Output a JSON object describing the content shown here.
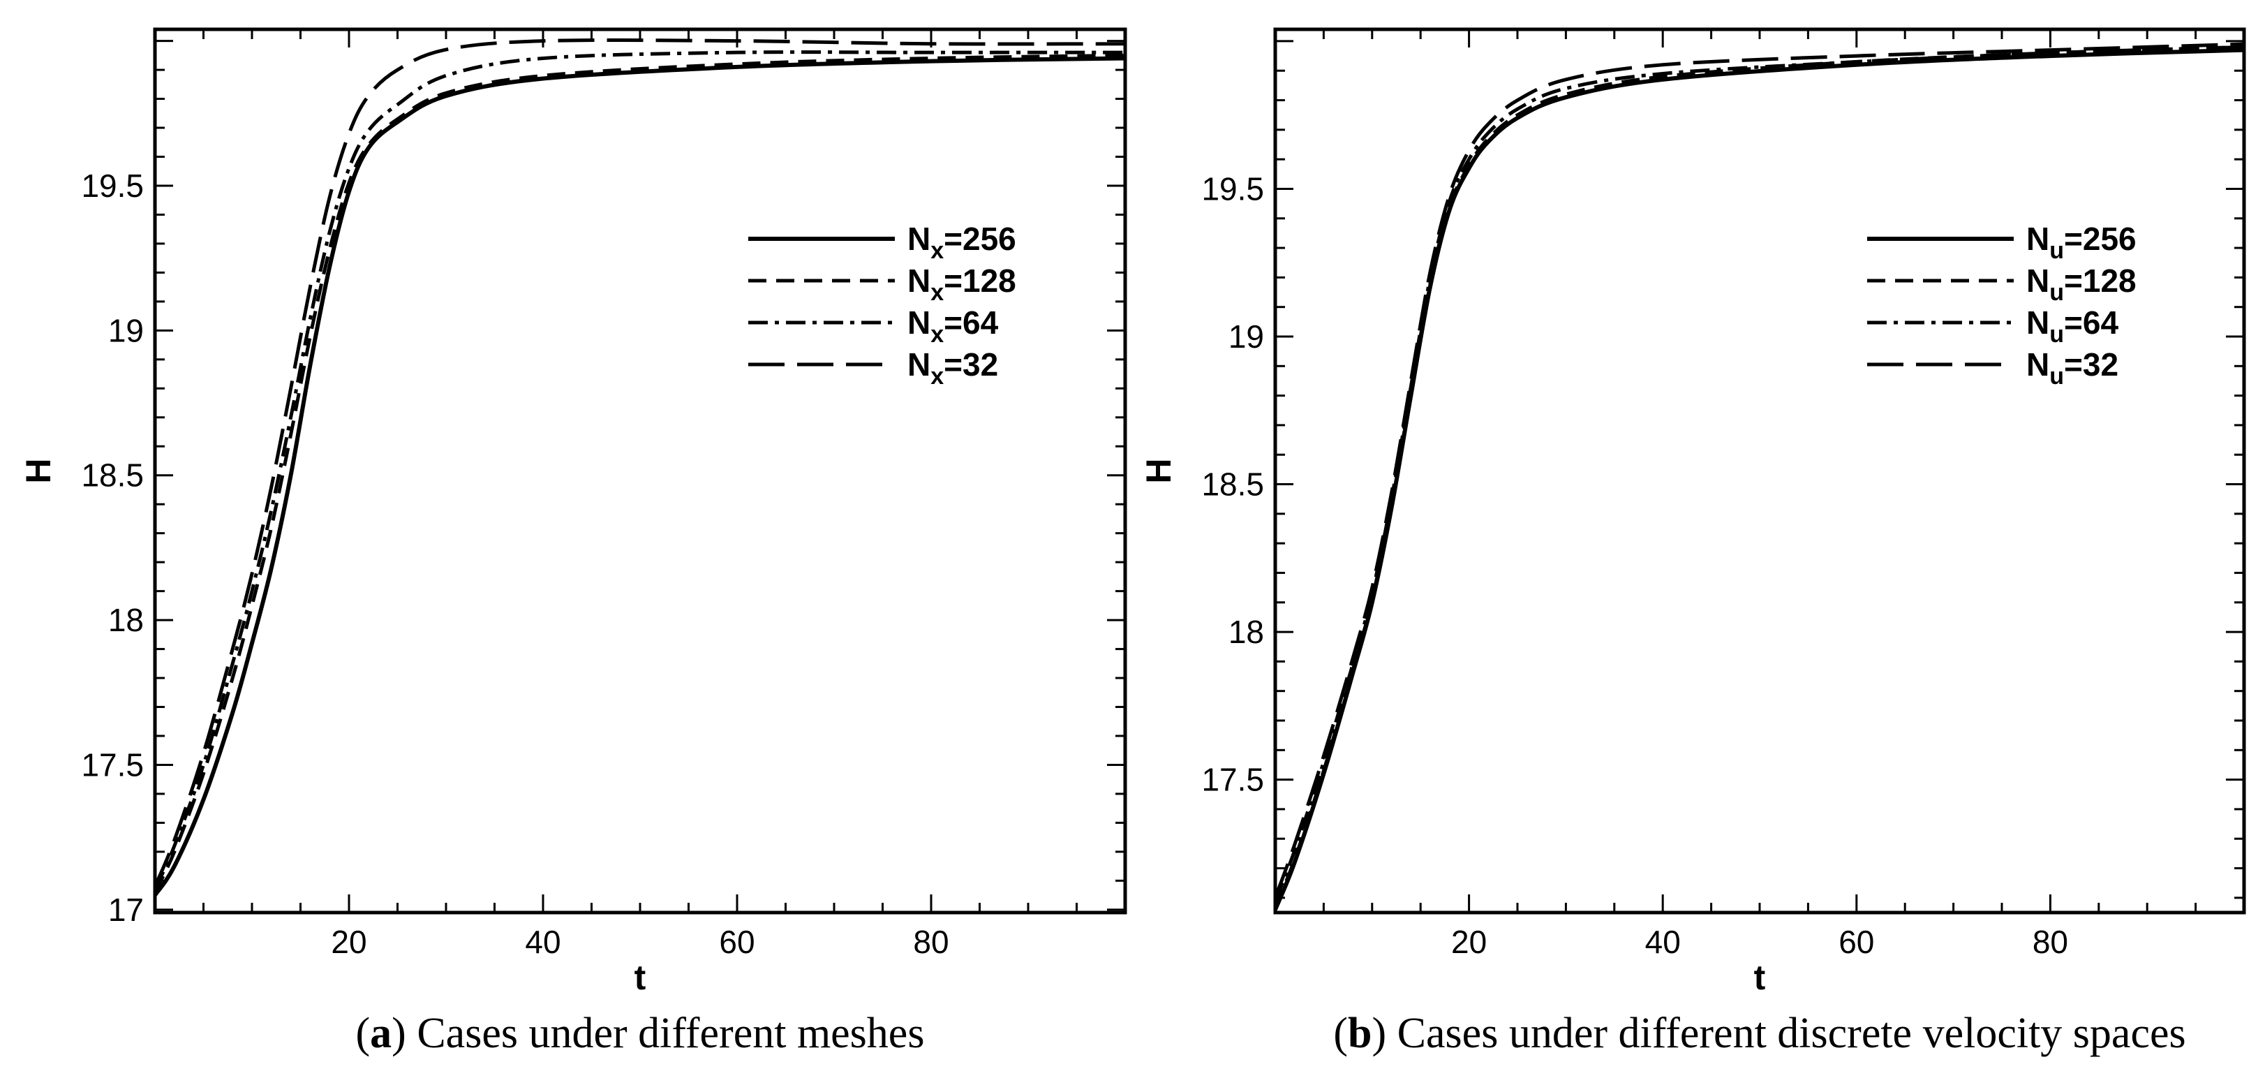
{
  "panels": [
    {
      "caption_tag": "a",
      "caption_text": "Cases under different meshes",
      "chart_data": {
        "type": "line",
        "title": "",
        "xlabel": "t",
        "ylabel": "H",
        "xlim": [
          0,
          100
        ],
        "ylim": [
          16.99,
          20.04
        ],
        "xticks": [
          20,
          40,
          60,
          80
        ],
        "yticks": [
          17,
          17.5,
          18,
          18.5,
          19,
          19.5
        ],
        "grid": false,
        "legend_position": "top-right",
        "series": [
          {
            "name_main": "N",
            "name_sub": "x",
            "name_rest": "=256",
            "dash": "solid",
            "x": [
              0,
              2,
              5,
              8,
              10,
              12,
              14,
              16,
              18,
              20,
              22,
              25,
              30,
              40,
              60,
              80,
              100
            ],
            "y": [
              17.05,
              17.15,
              17.38,
              17.68,
              17.92,
              18.18,
              18.5,
              18.88,
              19.22,
              19.48,
              19.63,
              19.72,
              19.81,
              19.87,
              19.91,
              19.93,
              19.94
            ]
          },
          {
            "name_main": "N",
            "name_sub": "x",
            "name_rest": "=128",
            "dash": "dashed",
            "x": [
              0,
              2,
              5,
              8,
              10,
              12,
              14,
              16,
              18,
              20,
              22,
              25,
              30,
              40,
              60,
              80,
              100
            ],
            "y": [
              17.06,
              17.2,
              17.47,
              17.8,
              18.05,
              18.32,
              18.64,
              18.98,
              19.28,
              19.51,
              19.64,
              19.73,
              19.82,
              19.88,
              19.92,
              19.94,
              19.95
            ]
          },
          {
            "name_main": "N",
            "name_sub": "x",
            "name_rest": "=64",
            "dash": "dashdot",
            "x": [
              0,
              2,
              5,
              8,
              10,
              12,
              14,
              16,
              18,
              20,
              22,
              25,
              30,
              40,
              60,
              80,
              100
            ],
            "y": [
              17.07,
              17.22,
              17.5,
              17.85,
              18.1,
              18.38,
              18.7,
              19.04,
              19.34,
              19.56,
              19.69,
              19.78,
              19.88,
              19.94,
              19.96,
              19.96,
              19.96
            ]
          },
          {
            "name_main": "N",
            "name_sub": "x",
            "name_rest": "=32",
            "dash": "longdash",
            "x": [
              0,
              2,
              5,
              8,
              10,
              12,
              14,
              16,
              18,
              20,
              22,
              25,
              30,
              40,
              60,
              80,
              100
            ],
            "y": [
              17.08,
              17.24,
              17.54,
              17.9,
              18.16,
              18.46,
              18.8,
              19.15,
              19.46,
              19.68,
              19.81,
              19.9,
              19.97,
              20.0,
              20.0,
              19.99,
              19.99
            ]
          }
        ]
      }
    },
    {
      "caption_tag": "b",
      "caption_text": "Cases under different discrete velocity spaces",
      "chart_data": {
        "type": "line",
        "title": "",
        "xlabel": "t",
        "ylabel": "H",
        "xlim": [
          0,
          100
        ],
        "ylim": [
          17.05,
          20.04
        ],
        "xticks": [
          20,
          40,
          60,
          80
        ],
        "yticks": [
          17.5,
          18,
          18.5,
          19,
          19.5
        ],
        "grid": false,
        "legend_position": "top-right",
        "series": [
          {
            "name_main": "N",
            "name_sub": "u",
            "name_rest": "=256",
            "dash": "solid",
            "x": [
              0,
              2,
              5,
              8,
              10,
              12,
              14,
              16,
              18,
              20,
              22,
              25,
              30,
              40,
              60,
              80,
              100
            ],
            "y": [
              17.06,
              17.22,
              17.52,
              17.86,
              18.1,
              18.42,
              18.8,
              19.17,
              19.43,
              19.57,
              19.66,
              19.74,
              19.81,
              19.87,
              19.92,
              19.95,
              19.97
            ]
          },
          {
            "name_main": "N",
            "name_sub": "u",
            "name_rest": "=128",
            "dash": "dashed",
            "x": [
              0,
              2,
              5,
              8,
              10,
              12,
              14,
              16,
              18,
              20,
              22,
              25,
              30,
              40,
              60,
              80,
              100
            ],
            "y": [
              17.07,
              17.23,
              17.53,
              17.87,
              18.11,
              18.43,
              18.81,
              19.18,
              19.44,
              19.58,
              19.67,
              19.75,
              19.82,
              19.88,
              19.93,
              19.96,
              19.98
            ]
          },
          {
            "name_main": "N",
            "name_sub": "u",
            "name_rest": "=64",
            "dash": "dashdot",
            "x": [
              0,
              2,
              5,
              8,
              10,
              12,
              14,
              16,
              18,
              20,
              22,
              25,
              30,
              40,
              60,
              80,
              100
            ],
            "y": [
              17.09,
              17.26,
              17.56,
              17.89,
              18.13,
              18.45,
              18.83,
              19.2,
              19.46,
              19.6,
              19.69,
              19.77,
              19.84,
              19.89,
              19.93,
              19.96,
              19.98
            ]
          },
          {
            "name_main": "N",
            "name_sub": "u",
            "name_rest": "=32",
            "dash": "longdash",
            "x": [
              0,
              2,
              5,
              8,
              10,
              12,
              14,
              16,
              18,
              20,
              22,
              25,
              30,
              40,
              60,
              80,
              100
            ],
            "y": [
              17.1,
              17.28,
              17.58,
              17.91,
              18.15,
              18.47,
              18.85,
              19.22,
              19.48,
              19.63,
              19.72,
              19.8,
              19.87,
              19.92,
              19.95,
              19.97,
              19.99
            ]
          }
        ]
      }
    }
  ]
}
